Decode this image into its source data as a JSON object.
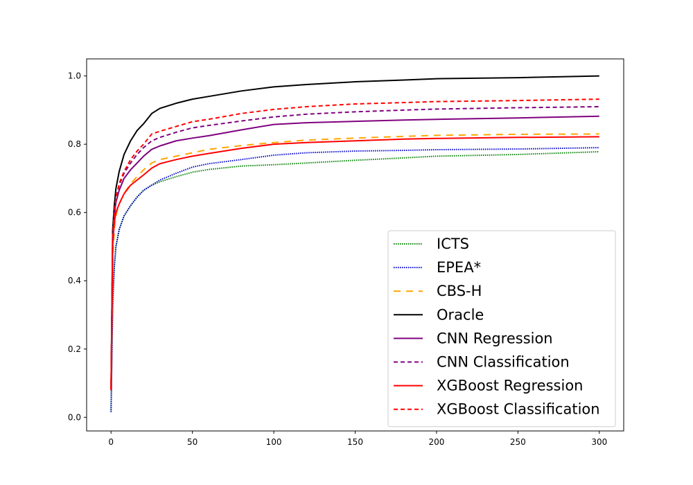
{
  "chart_data": {
    "type": "line",
    "title": "",
    "xlabel": "",
    "ylabel": "",
    "xlim": [
      -15,
      315
    ],
    "ylim": [
      -0.04,
      1.05
    ],
    "xticks": [
      0,
      50,
      100,
      150,
      200,
      250,
      300
    ],
    "yticks": [
      0.0,
      0.2,
      0.4,
      0.6,
      0.8,
      1.0
    ],
    "xtick_labels": [
      "0",
      "50",
      "100",
      "150",
      "200",
      "250",
      "300"
    ],
    "ytick_labels": [
      "0.0",
      "0.2",
      "0.4",
      "0.6",
      "0.8",
      "1.0"
    ],
    "grid": false,
    "legend_position": "lower-right",
    "series": [
      {
        "name": "ICTS",
        "color": "#008000",
        "dash": "dotted",
        "x": [
          0,
          1,
          2,
          3,
          5,
          8,
          12,
          16,
          20,
          25,
          30,
          40,
          50,
          60,
          80,
          100,
          120,
          150,
          180,
          200,
          250,
          300
        ],
        "y": [
          0.02,
          0.33,
          0.44,
          0.5,
          0.55,
          0.59,
          0.62,
          0.645,
          0.665,
          0.68,
          0.69,
          0.705,
          0.718,
          0.726,
          0.736,
          0.74,
          0.745,
          0.753,
          0.76,
          0.765,
          0.77,
          0.778
        ]
      },
      {
        "name": "EPEA*",
        "color": "#0000cc",
        "dash": "dotted",
        "x": [
          0,
          1,
          2,
          3,
          5,
          8,
          12,
          16,
          20,
          25,
          30,
          40,
          50,
          60,
          80,
          100,
          120,
          150,
          180,
          200,
          250,
          300
        ],
        "y": [
          0.015,
          0.33,
          0.44,
          0.5,
          0.55,
          0.59,
          0.62,
          0.645,
          0.665,
          0.68,
          0.695,
          0.715,
          0.733,
          0.743,
          0.755,
          0.768,
          0.775,
          0.78,
          0.782,
          0.784,
          0.786,
          0.79
        ]
      },
      {
        "name": "CBS-H",
        "color": "#ffa500",
        "dash": "long",
        "x": [
          0,
          1,
          2,
          3,
          5,
          8,
          12,
          16,
          20,
          25,
          30,
          40,
          50,
          60,
          80,
          100,
          120,
          150,
          180,
          200,
          250,
          300
        ],
        "y": [
          0.08,
          0.46,
          0.55,
          0.59,
          0.625,
          0.655,
          0.685,
          0.705,
          0.725,
          0.745,
          0.755,
          0.765,
          0.775,
          0.785,
          0.796,
          0.805,
          0.812,
          0.818,
          0.823,
          0.826,
          0.829,
          0.83
        ]
      },
      {
        "name": "Oracle",
        "color": "#000000",
        "dash": "solid",
        "x": [
          0,
          1,
          2,
          3,
          5,
          8,
          12,
          16,
          20,
          25,
          30,
          40,
          50,
          60,
          80,
          100,
          120,
          150,
          180,
          200,
          250,
          300
        ],
        "y": [
          0.08,
          0.55,
          0.62,
          0.67,
          0.72,
          0.77,
          0.81,
          0.84,
          0.86,
          0.89,
          0.905,
          0.92,
          0.932,
          0.94,
          0.956,
          0.968,
          0.975,
          0.983,
          0.988,
          0.992,
          0.995,
          1.0
        ]
      },
      {
        "name": "CNN Regression",
        "color": "#7f007f",
        "dash": "solid",
        "x": [
          0,
          1,
          2,
          3,
          5,
          8,
          12,
          16,
          20,
          25,
          30,
          40,
          50,
          60,
          80,
          100,
          120,
          150,
          180,
          200,
          250,
          300
        ],
        "y": [
          0.08,
          0.52,
          0.59,
          0.63,
          0.665,
          0.7,
          0.725,
          0.745,
          0.765,
          0.785,
          0.795,
          0.81,
          0.818,
          0.825,
          0.842,
          0.858,
          0.863,
          0.867,
          0.871,
          0.873,
          0.877,
          0.882
        ]
      },
      {
        "name": "CNN Classification",
        "color": "#7f007f",
        "dash": "dashed",
        "x": [
          0,
          1,
          2,
          3,
          5,
          8,
          12,
          16,
          20,
          25,
          30,
          40,
          50,
          60,
          80,
          100,
          120,
          150,
          180,
          200,
          250,
          300
        ],
        "y": [
          0.08,
          0.53,
          0.6,
          0.64,
          0.68,
          0.715,
          0.745,
          0.77,
          0.79,
          0.81,
          0.82,
          0.835,
          0.848,
          0.855,
          0.868,
          0.88,
          0.888,
          0.895,
          0.9,
          0.903,
          0.907,
          0.91
        ]
      },
      {
        "name": "XGBoost Regression",
        "color": "#ff0000",
        "dash": "solid",
        "x": [
          0,
          1,
          2,
          3,
          5,
          8,
          12,
          16,
          20,
          25,
          30,
          40,
          50,
          60,
          80,
          100,
          120,
          150,
          180,
          200,
          250,
          300
        ],
        "y": [
          0.08,
          0.5,
          0.57,
          0.6,
          0.625,
          0.655,
          0.68,
          0.695,
          0.71,
          0.73,
          0.743,
          0.755,
          0.765,
          0.773,
          0.788,
          0.8,
          0.805,
          0.81,
          0.815,
          0.817,
          0.82,
          0.822
        ]
      },
      {
        "name": "XGBoost Classification",
        "color": "#ff0000",
        "dash": "dashed",
        "x": [
          0,
          1,
          2,
          3,
          5,
          8,
          12,
          16,
          20,
          25,
          30,
          40,
          50,
          60,
          80,
          100,
          120,
          150,
          180,
          200,
          250,
          300
        ],
        "y": [
          0.08,
          0.53,
          0.6,
          0.64,
          0.685,
          0.72,
          0.755,
          0.78,
          0.8,
          0.83,
          0.838,
          0.852,
          0.866,
          0.873,
          0.89,
          0.902,
          0.91,
          0.918,
          0.922,
          0.925,
          0.928,
          0.932
        ]
      }
    ]
  }
}
